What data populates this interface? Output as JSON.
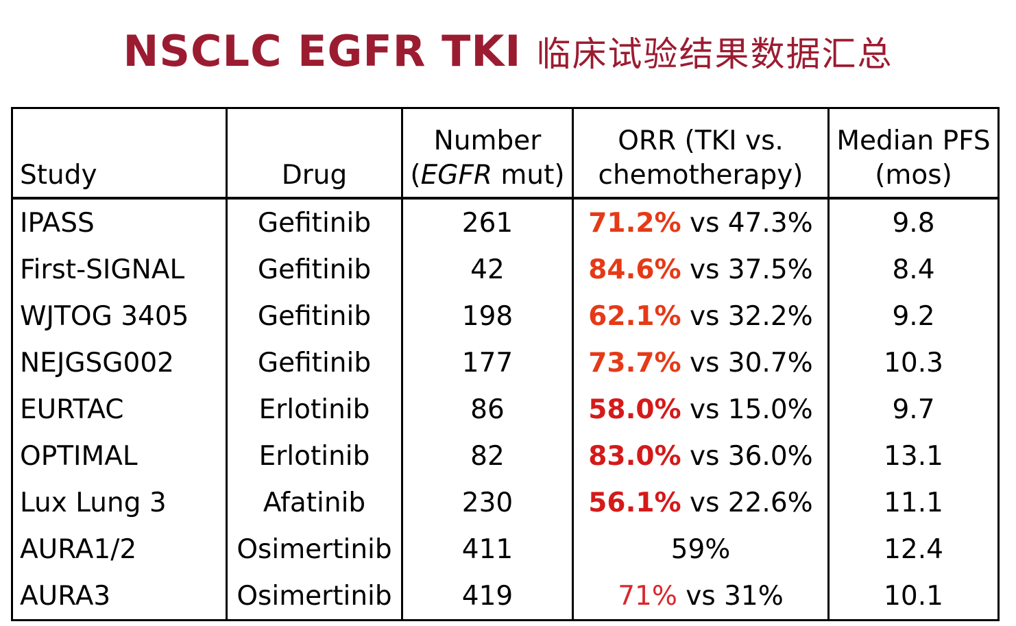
{
  "title": {
    "english": "NSCLC EGFR TKI",
    "chinese": "临床试验结果数据汇总"
  },
  "table": {
    "headers": {
      "study": "Study",
      "drug": "Drug",
      "number_line1": "Number",
      "number_line2_open": "(",
      "number_line2_italic": "EGFR",
      "number_line2_rest": " mut)",
      "orr_line1": "ORR (TKI vs.",
      "orr_line2": "chemotherapy)",
      "pfs_line1": "Median PFS",
      "pfs_line2": "(mos)"
    },
    "rows": [
      {
        "study": "IPASS",
        "drug": "Gefitinib",
        "number": "261",
        "orr_tki": "71.2%",
        "orr_rest": " vs 47.3%",
        "pfs": "9.8"
      },
      {
        "study": "First-SIGNAL",
        "drug": "Gefitinib",
        "number": "42",
        "orr_tki": "84.6%",
        "orr_rest": " vs 37.5%",
        "pfs": "8.4"
      },
      {
        "study": "WJTOG 3405",
        "drug": "Gefitinib",
        "number": "198",
        "orr_tki": "62.1%",
        "orr_rest": " vs 32.2%",
        "pfs": "9.2"
      },
      {
        "study": "NEJGSG002",
        "drug": "Gefitinib",
        "number": "177",
        "orr_tki": "73.7%",
        "orr_rest": " vs 30.7%",
        "pfs": "10.3"
      },
      {
        "study": "EURTAC",
        "drug": "Erlotinib",
        "number": "86",
        "orr_tki": "58.0%",
        "orr_rest": " vs 15.0%",
        "pfs": "9.7"
      },
      {
        "study": "OPTIMAL",
        "drug": "Erlotinib",
        "number": "82",
        "orr_tki": "83.0%",
        "orr_rest": " vs 36.0%",
        "pfs": "13.1"
      },
      {
        "study": "Lux Lung 3",
        "drug": "Afatinib",
        "number": "230",
        "orr_tki": "56.1%",
        "orr_rest": " vs 22.6%",
        "pfs": "11.1"
      },
      {
        "study": "AURA1/2",
        "drug": "Osimertinib",
        "number": "411",
        "orr_tki": "",
        "orr_rest": "59%",
        "pfs": "12.4"
      },
      {
        "study": "AURA3",
        "drug": "Osimertinib",
        "number": "419",
        "orr_tki": "71%",
        "orr_rest": " vs 31%",
        "pfs": "10.1"
      }
    ]
  },
  "colors": {
    "title": "#9b1c31",
    "highlight_orange": "#e53a17",
    "highlight_red": "#d41a1a",
    "highlight_plain": "#d9272e"
  }
}
